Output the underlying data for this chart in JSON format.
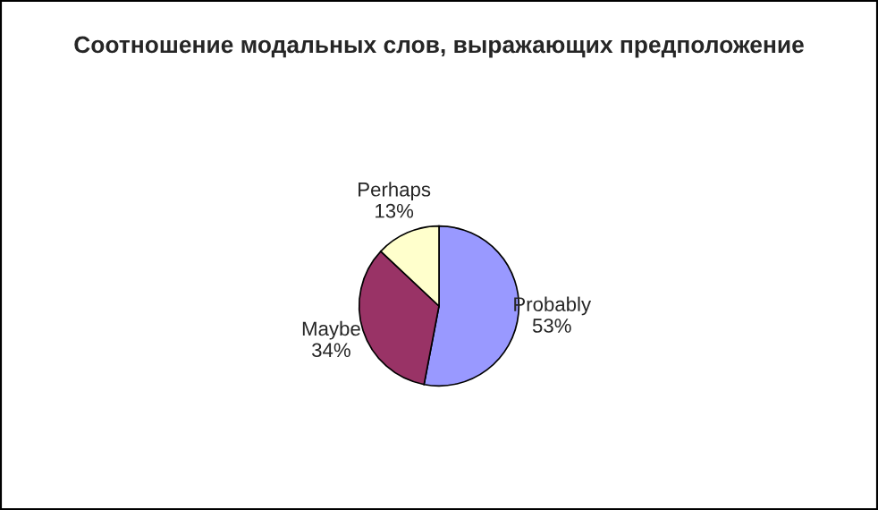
{
  "chart_data": {
    "type": "pie",
    "title": "Соотношение модальных слов, выражающих предположение",
    "categories": [
      "Probably",
      "Maybe",
      "Perhaps"
    ],
    "values": [
      53,
      34,
      13
    ],
    "value_labels": [
      "53%",
      "34%",
      "13%"
    ],
    "colors": [
      "#9999ff",
      "#993366",
      "#ffffcc"
    ],
    "legend": false
  }
}
